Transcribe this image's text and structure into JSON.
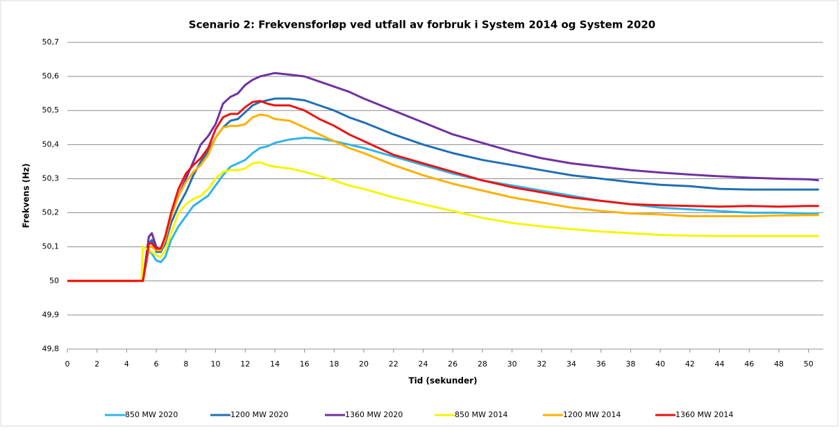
{
  "chart_data": {
    "type": "line",
    "title": "Scenario 2: Frekvensforløp ved utfall av forbruk i System 2014 og System 2020",
    "x_label": "Tid (sekunder)",
    "y_label": "Frekvens (Hz)",
    "x": [
      0,
      1,
      2,
      3,
      4,
      5,
      5.1,
      5.5,
      5.7,
      6,
      6.3,
      6.6,
      7,
      7.5,
      8,
      8.5,
      9,
      9.5,
      10,
      10.5,
      11,
      11.5,
      12,
      12.5,
      13,
      13.5,
      14,
      15,
      16,
      17,
      18,
      19,
      20,
      22,
      24,
      26,
      28,
      30,
      32,
      34,
      36,
      38,
      40,
      42,
      44,
      46,
      48,
      50,
      50.7
    ],
    "xlim": [
      0,
      51
    ],
    "xticks": [
      0,
      2,
      4,
      6,
      8,
      10,
      12,
      14,
      16,
      18,
      20,
      22,
      24,
      26,
      28,
      30,
      32,
      34,
      36,
      38,
      40,
      42,
      44,
      46,
      48,
      50
    ],
    "ylim": [
      49.8,
      50.7
    ],
    "yticks": [
      {
        "value": 49.8,
        "label": "49,8"
      },
      {
        "value": 49.9,
        "label": "49,9"
      },
      50,
      {
        "value": 50.1,
        "label": "50,1"
      },
      {
        "value": 50.2,
        "label": "50,2"
      },
      {
        "value": 50.3,
        "label": "50,3"
      },
      {
        "value": 50.4,
        "label": "50,4"
      },
      {
        "value": 50.5,
        "label": "50,5"
      },
      {
        "value": 50.6,
        "label": "50,6"
      },
      {
        "value": 50.7,
        "label": "50,7"
      }
    ],
    "grid": true,
    "legend": "bottom",
    "series": [
      {
        "name": "850 MW 2020",
        "color": "#2eb4ea",
        "values": [
          50,
          50,
          50,
          50,
          50,
          50,
          50,
          50.09,
          50.08,
          50.06,
          50.055,
          50.07,
          50.12,
          50.16,
          50.19,
          50.22,
          50.235,
          50.25,
          50.28,
          50.31,
          50.335,
          50.345,
          50.355,
          50.375,
          50.39,
          50.395,
          50.405,
          50.415,
          50.42,
          50.418,
          50.41,
          50.4,
          50.39,
          50.365,
          50.34,
          50.315,
          50.295,
          50.28,
          50.265,
          50.25,
          50.235,
          50.225,
          50.215,
          50.21,
          50.205,
          50.2,
          50.2,
          50.198,
          50.198
        ]
      },
      {
        "name": "1200 MW 2020",
        "color": "#1f6fb5",
        "values": [
          50,
          50,
          50,
          50,
          50,
          50,
          50,
          50.11,
          50.12,
          50.085,
          50.085,
          50.11,
          50.17,
          50.22,
          50.26,
          50.31,
          50.35,
          50.38,
          50.42,
          50.45,
          50.47,
          50.475,
          50.495,
          50.515,
          50.525,
          50.53,
          50.535,
          50.535,
          50.53,
          50.515,
          50.5,
          50.48,
          50.465,
          50.43,
          50.4,
          50.375,
          50.355,
          50.34,
          50.325,
          50.31,
          50.3,
          50.29,
          50.282,
          50.278,
          50.27,
          50.268,
          50.268,
          50.268,
          50.268
        ]
      },
      {
        "name": "1360 MW 2020",
        "color": "#7030a0",
        "values": [
          50,
          50,
          50,
          50,
          50,
          50,
          50,
          50.13,
          50.14,
          50.1,
          50.09,
          50.12,
          50.19,
          50.25,
          50.3,
          50.35,
          50.4,
          50.425,
          50.46,
          50.52,
          50.54,
          50.55,
          50.575,
          50.59,
          50.6,
          50.605,
          50.61,
          50.605,
          50.6,
          50.585,
          50.57,
          50.555,
          50.535,
          50.5,
          50.465,
          50.43,
          50.405,
          50.38,
          50.36,
          50.345,
          50.335,
          50.325,
          50.318,
          50.312,
          50.307,
          50.303,
          50.3,
          50.298,
          50.295
        ]
      },
      {
        "name": "850 MW 2014",
        "color": "#f5f500",
        "values": [
          50,
          50,
          50,
          50,
          50,
          50,
          50.1,
          50.09,
          50.085,
          50.075,
          50.07,
          50.09,
          50.14,
          50.2,
          50.225,
          50.24,
          50.25,
          50.27,
          50.3,
          50.32,
          50.325,
          50.325,
          50.33,
          50.345,
          50.348,
          50.34,
          50.335,
          50.33,
          50.32,
          50.308,
          50.295,
          50.28,
          50.27,
          50.245,
          50.225,
          50.205,
          50.185,
          50.17,
          50.16,
          50.152,
          50.145,
          50.14,
          50.135,
          50.133,
          50.132,
          50.132,
          50.132,
          50.132,
          50.132
        ]
      },
      {
        "name": "1200 MW 2014",
        "color": "#ffb000",
        "values": [
          50,
          50,
          50,
          50,
          50,
          50,
          50,
          50.1,
          50.1,
          50.09,
          50.09,
          50.12,
          50.19,
          50.25,
          50.29,
          50.32,
          50.34,
          50.37,
          50.42,
          50.45,
          50.455,
          50.455,
          50.46,
          50.48,
          50.488,
          50.485,
          50.475,
          50.47,
          50.45,
          50.43,
          50.41,
          50.39,
          50.375,
          50.34,
          50.31,
          50.285,
          50.265,
          50.245,
          50.23,
          50.215,
          50.205,
          50.198,
          50.195,
          50.19,
          50.19,
          50.19,
          50.192,
          50.193,
          50.193
        ]
      },
      {
        "name": "1360 MW 2014",
        "color": "#ee1111",
        "values": [
          50,
          50,
          50,
          50,
          50,
          50,
          50,
          50.11,
          50.11,
          50.095,
          50.095,
          50.13,
          50.2,
          50.27,
          50.315,
          50.34,
          50.36,
          50.39,
          50.445,
          50.48,
          50.49,
          50.49,
          50.51,
          50.525,
          50.528,
          50.52,
          50.515,
          50.515,
          50.5,
          50.475,
          50.455,
          50.43,
          50.41,
          50.37,
          50.345,
          50.32,
          50.295,
          50.275,
          50.26,
          50.245,
          50.235,
          50.225,
          50.222,
          50.22,
          50.218,
          50.22,
          50.218,
          50.22,
          50.22
        ]
      }
    ]
  }
}
